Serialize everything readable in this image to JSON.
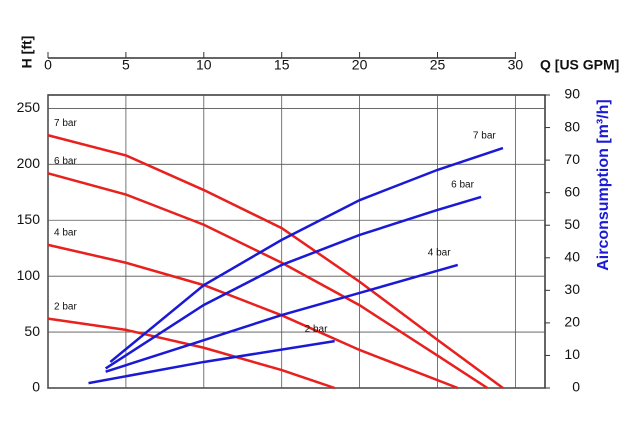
{
  "chart_data": {
    "type": "line",
    "x_label": "Q [US GPM]",
    "y_label": "H [ft]",
    "y2_label": "Airconsumption [m³/h]",
    "xlim": [
      0,
      31.9
    ],
    "xticks": [
      0,
      5,
      10,
      15,
      20,
      25,
      30
    ],
    "ylim": [
      0,
      262
    ],
    "yticks": [
      0,
      50,
      100,
      150,
      200,
      250
    ],
    "y2lim": [
      0,
      90
    ],
    "y2ticks": [
      0,
      10,
      20,
      30,
      40,
      50,
      60,
      70,
      80,
      90
    ],
    "grid": true,
    "series": [
      {
        "name": "7 bar",
        "color": "#e8201e",
        "x": [
          0,
          5,
          10,
          15,
          20,
          25,
          29.2
        ],
        "values": [
          226,
          208,
          177,
          143,
          95,
          43,
          0
        ]
      },
      {
        "name": "6 bar",
        "color": "#e8201e",
        "x": [
          0,
          5,
          10,
          15,
          20,
          25,
          28.2
        ],
        "values": [
          192,
          173,
          146,
          112,
          74,
          29,
          0
        ]
      },
      {
        "name": "4 bar",
        "color": "#e8201e",
        "x": [
          0,
          5,
          10,
          15,
          20,
          26.3
        ],
        "values": [
          128,
          112,
          92,
          65,
          34,
          0
        ]
      },
      {
        "name": "2 bar",
        "color": "#e8201e",
        "x": [
          0,
          5,
          10,
          15,
          18.4
        ],
        "values": [
          62,
          52,
          36,
          16,
          0
        ]
      },
      {
        "name": "7 bar",
        "color": "#1a1ad6",
        "axis": "y2",
        "x": [
          4.0,
          10,
          15,
          20,
          25,
          29.2
        ],
        "values": [
          8,
          31.6,
          45.5,
          57.7,
          67,
          73.7
        ]
      },
      {
        "name": "6 bar",
        "color": "#1a1ad6",
        "axis": "y2",
        "x": [
          3.7,
          10,
          15,
          20,
          25,
          27.8
        ],
        "values": [
          6,
          25.5,
          37.8,
          47,
          54.7,
          58.7
        ]
      },
      {
        "name": "4 bar",
        "color": "#1a1ad6",
        "axis": "y2",
        "x": [
          3.7,
          10,
          15,
          20,
          26.3
        ],
        "values": [
          5,
          14.7,
          22.4,
          29.2,
          37.8
        ]
      },
      {
        "name": "2 bar",
        "color": "#1a1ad6",
        "axis": "y2",
        "x": [
          2.6,
          10,
          18.4
        ],
        "values": [
          1.5,
          8,
          14.4
        ]
      }
    ]
  }
}
